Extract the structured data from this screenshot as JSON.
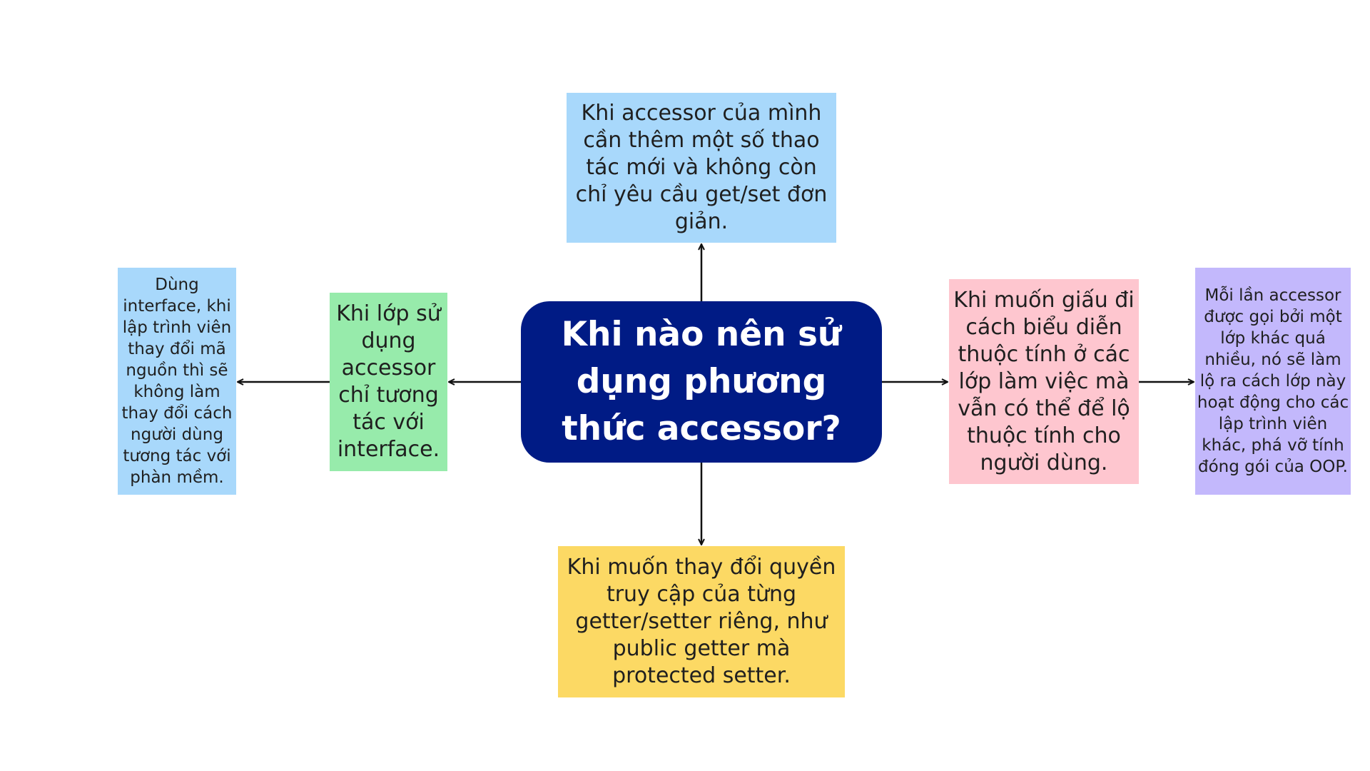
{
  "colors": {
    "center_bg": "#001b85",
    "top_bg": "#a8d8fb",
    "bottom_bg": "#fcd964",
    "left_bg": "#97ebab",
    "farleft_bg": "#a8d8fb",
    "right_bg": "#fec6cf",
    "farright_bg": "#c3b8fc",
    "arrow": "#111111"
  },
  "center": {
    "text": "Khi nào nên sử dụng phương thức accessor?"
  },
  "nodes": {
    "top": "Khi accessor của mình cần thêm một số thao tác mới và không còn chỉ yêu cầu get/set đơn giản.",
    "bottom": "Khi muốn thay đổi quyền truy cập của từng getter/setter riêng, như public getter mà protected setter.",
    "left": "Khi lớp sử dụng accessor chỉ tương tác với interface.",
    "farleft": "Dùng interface, khi lập trình viên thay đổi mã nguồn thì sẽ không làm thay đổi cách người dùng tương tác với phàn mềm.",
    "right": "Khi muốn giấu đi cách biểu diễn thuộc tính ở các lớp làm việc mà vẫn có thể để lộ thuộc tính cho người dùng.",
    "farright": "Mỗi lần accessor được gọi bởi một lớp khác quá nhiều, nó sẽ làm lộ ra cách lớp này hoạt động cho các lập trình viên khác, phá vỡ tính đóng gói của OOP."
  }
}
